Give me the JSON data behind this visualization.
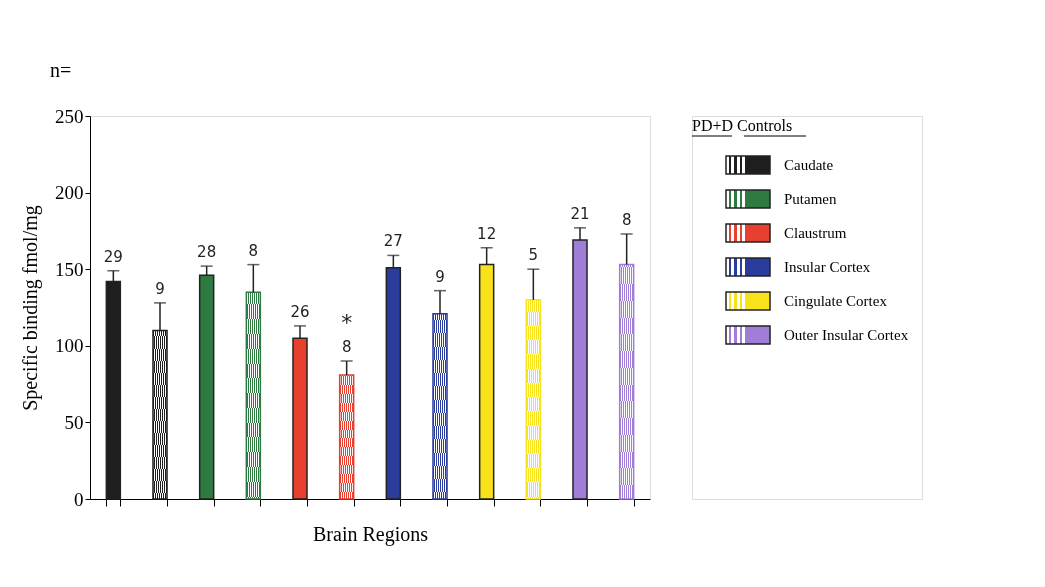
{
  "chart_data": {
    "type": "bar",
    "xlabel": "Brain Regions",
    "ylabel": "Specific binding fmol/mg",
    "legend_title": "PD+D  Controls",
    "categories": [
      null,
      null,
      null,
      null,
      null,
      null,
      null,
      null,
      null,
      null,
      null,
      null
    ],
    "series": [
      {
        "name": "Caudate",
        "color": "#1e1e1e",
        "values": [
          142,
          110,
          null,
          null,
          null,
          null,
          null,
          null,
          null,
          null,
          null,
          null
        ],
        "errors": [
          7,
          18,
          null,
          null,
          null,
          null,
          null,
          null,
          null,
          null,
          null,
          null
        ]
      },
      {
        "name": "Putamen",
        "color": "#2f7a40",
        "values": [
          null,
          null,
          146,
          135,
          null,
          null,
          null,
          null,
          null,
          null,
          null,
          null
        ],
        "errors": [
          null,
          null,
          6,
          18,
          null,
          null,
          null,
          null,
          null,
          null,
          null,
          null
        ]
      },
      {
        "name": "Claustrum",
        "color": "#e8402e",
        "values": [
          null,
          null,
          null,
          null,
          105,
          81,
          null,
          null,
          null,
          null,
          null,
          null
        ],
        "errors": [
          null,
          null,
          null,
          null,
          8,
          9,
          null,
          null,
          null,
          null,
          null,
          null
        ]
      },
      {
        "name": "Insular Cortex",
        "color": "#2b3d9c",
        "values": [
          null,
          null,
          null,
          null,
          null,
          null,
          151,
          121,
          null,
          null,
          null,
          null
        ],
        "errors": [
          null,
          null,
          null,
          null,
          null,
          null,
          8,
          15,
          null,
          null,
          null,
          null
        ]
      },
      {
        "name": "Cingulate Cortex",
        "color": "#f7e21c",
        "values": [
          null,
          null,
          null,
          null,
          null,
          null,
          null,
          null,
          153,
          130,
          null,
          null
        ],
        "errors": [
          null,
          null,
          null,
          null,
          null,
          null,
          null,
          null,
          11,
          20,
          null,
          null
        ]
      },
      {
        "name": "Outer Insular Cortex",
        "color": "#a07ed8",
        "values": [
          null,
          null,
          null,
          null,
          null,
          null,
          null,
          null,
          null,
          null,
          169,
          153
        ],
        "errors": [
          null,
          null,
          null,
          null,
          null,
          null,
          null,
          null,
          null,
          null,
          8,
          20
        ]
      }
    ],
    "annotations": [
      "n=",
      "29",
      "9",
      "28",
      "8",
      "26",
      "8",
      "27",
      "9",
      "12",
      "5",
      "21",
      "8",
      "*"
    ],
    "ylim": [
      0,
      250
    ],
    "yticks": [
      0,
      50,
      100,
      150,
      200,
      250
    ],
    "grid": false,
    "legend": "right",
    "tick_labels": "y"
  }
}
